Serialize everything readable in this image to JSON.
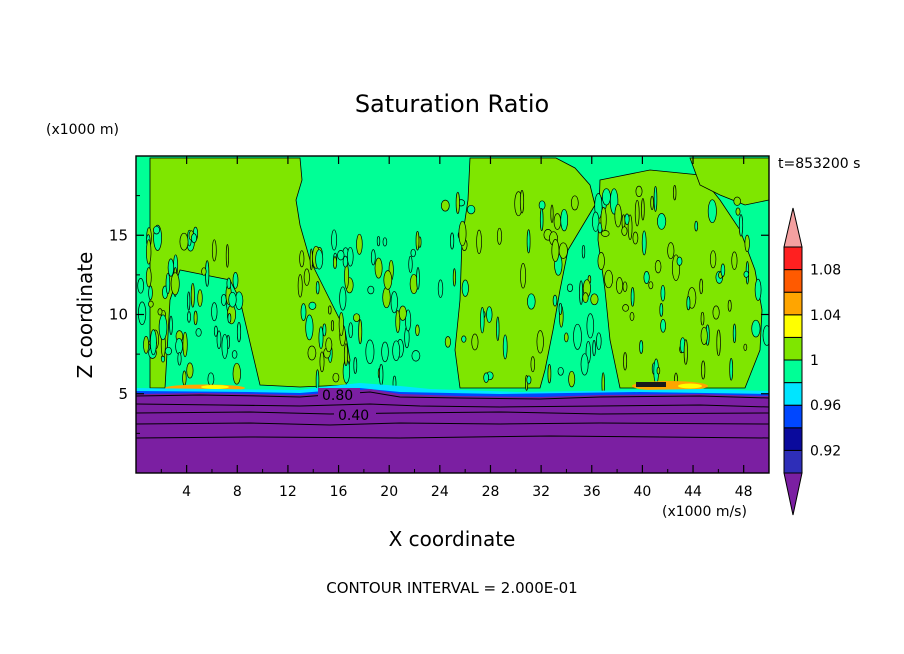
{
  "chart_data": {
    "type": "heatmap",
    "title": "Saturation Ratio",
    "xlabel": "X coordinate",
    "ylabel": "Z coordinate",
    "x_unit": "(x1000 m/s)",
    "y_unit": "(x1000 m)",
    "time_label": "t=853200 s",
    "footer": "CONTOUR INTERVAL = 2.000E-01",
    "xlim": [
      0,
      50
    ],
    "ylim": [
      0,
      20
    ],
    "x_ticks": [
      4,
      8,
      12,
      16,
      20,
      24,
      28,
      32,
      36,
      40,
      44,
      48
    ],
    "y_ticks": [
      5,
      10,
      15
    ],
    "colorbar": {
      "colors": [
        "#7b1fa2",
        "#2e2eb8",
        "#0a0a9c",
        "#0047ff",
        "#00e5ff",
        "#00ff96",
        "#7fe600",
        "#ffff00",
        "#ffa500",
        "#ff5a00",
        "#ff2020",
        "#f4a0a0"
      ],
      "labels": [
        {
          "text": "0.92",
          "at": 0.92
        },
        {
          "text": "0.96",
          "at": 0.96
        },
        {
          "text": "1",
          "at": 1.0
        },
        {
          "text": "1.04",
          "at": 1.04
        },
        {
          "text": "1.08",
          "at": 1.08
        }
      ]
    },
    "contour_labels": [
      {
        "text": "0.80",
        "x": 18.5,
        "z": 4.9
      },
      {
        "text": "0.40",
        "x": 18.5,
        "z": 3.6
      }
    ],
    "colors": {
      "dry_layer": "#7b1fa2",
      "near_saturation": "#00ff96",
      "slightly_super": "#7fe600"
    }
  }
}
